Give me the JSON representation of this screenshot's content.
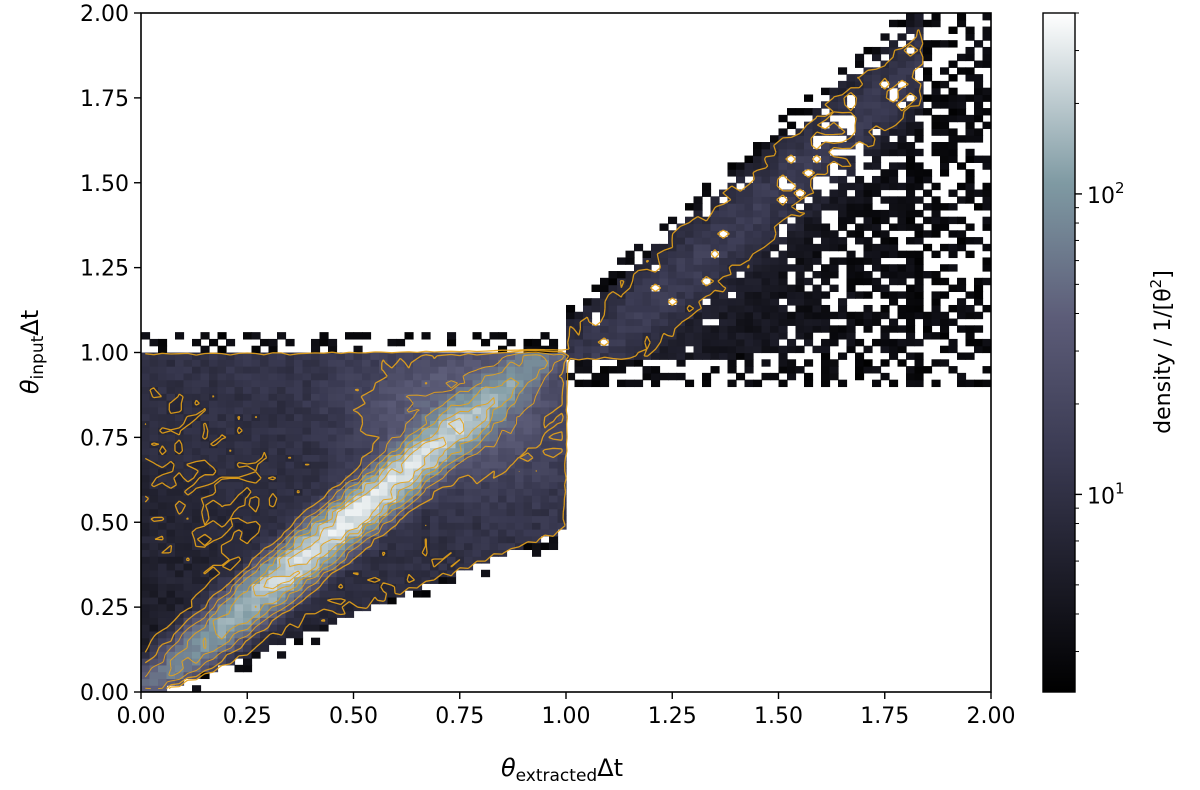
{
  "chart_data": {
    "type": "heatmap",
    "title": "",
    "xlabel": {
      "symbol": "θ",
      "subscript": "extracted",
      "suffix": "Δt"
    },
    "ylabel": {
      "symbol": "θ",
      "subscript": "input",
      "suffix": "Δt"
    },
    "xlim": [
      0.0,
      2.0
    ],
    "ylim": [
      0.0,
      2.0
    ],
    "xticks": [
      "0.00",
      "0.25",
      "0.50",
      "0.75",
      "1.00",
      "1.25",
      "1.50",
      "1.75",
      "2.00"
    ],
    "yticks": [
      "0.00",
      "0.25",
      "0.50",
      "0.75",
      "1.00",
      "1.25",
      "1.50",
      "1.75",
      "2.00"
    ],
    "grid": false,
    "colormap": "bone",
    "contour_color": "#e8a317",
    "colorbar": {
      "label_prefix": "density / 1/[θ",
      "label_sup": "2",
      "label_suffix": "]",
      "scale": "log",
      "range": [
        2.2,
        400
      ],
      "major_ticks": [
        {
          "value": 10,
          "base": "10",
          "exp": "1"
        },
        {
          "value": 100,
          "base": "10",
          "exp": "2"
        }
      ],
      "minor_ticks": [
        3,
        4,
        5,
        6,
        7,
        8,
        9,
        20,
        30,
        40,
        50,
        60,
        70,
        80,
        90,
        200,
        300,
        400
      ]
    },
    "regions": [
      {
        "name": "lower block",
        "x_range": [
          0.0,
          1.0
        ],
        "y_range": [
          0.0,
          1.05
        ],
        "dense_ridge": "y ≈ x",
        "peak_density": "≈300 near (0.50, 0.50)"
      },
      {
        "name": "upper block",
        "x_range": [
          1.0,
          2.0
        ],
        "y_range": [
          0.95,
          2.0
        ],
        "dense_ridge": "along upper-left edge toward (1.9, 2.0)",
        "peak_density": "≈10–15"
      }
    ]
  }
}
